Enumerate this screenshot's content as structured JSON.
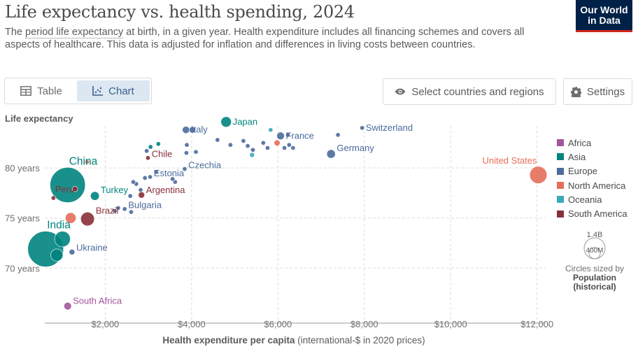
{
  "header": {
    "title": "Life expectancy vs. health spending, 2024",
    "subtitle_pre": "The ",
    "subtitle_link": "period life expectancy",
    "subtitle_post": " at birth, in a given year. Health expenditure includes all financing schemes and covers all aspects of healthcare. This data is adjusted for inflation and differences in living costs between countries.",
    "logo_line1": "Our World",
    "logo_line2": "in Data"
  },
  "toolbar": {
    "table_label": "Table",
    "chart_label": "Chart",
    "select_label": "Select countries and regions",
    "settings_label": "Settings"
  },
  "legend": {
    "items": [
      {
        "label": "Africa",
        "color": "#a2559c"
      },
      {
        "label": "Asia",
        "color": "#00847e"
      },
      {
        "label": "Europe",
        "color": "#4c6a9c"
      },
      {
        "label": "North America",
        "color": "#e56e5a"
      },
      {
        "label": "Oceania",
        "color": "#38aaba"
      },
      {
        "label": "South America",
        "color": "#883039"
      }
    ]
  },
  "size_legend": {
    "big": "1.4B",
    "small": "400M",
    "note": "Circles sized by",
    "variable_line1": "Population",
    "variable_line2": "(historical)"
  },
  "chart_data": {
    "type": "scatter",
    "title": "Life expectancy vs. health spending, 2024",
    "ylabel": "Life expectancy",
    "xlabel_bold": "Health expenditure per capita",
    "xlabel_rest": " (international-$ in 2020 prices)",
    "x_ticks": [
      {
        "value": 2000,
        "label": "$2,000"
      },
      {
        "value": 4000,
        "label": "$4,000"
      },
      {
        "value": 6000,
        "label": "$6,000"
      },
      {
        "value": 8000,
        "label": "$8,000"
      },
      {
        "value": 10000,
        "label": "$10,000"
      },
      {
        "value": 12000,
        "label": "$12,000"
      }
    ],
    "y_ticks": [
      {
        "value": 70,
        "label": "70 years"
      },
      {
        "value": 75,
        "label": "75 years"
      },
      {
        "value": 80,
        "label": "80 years"
      }
    ],
    "xlim": [
      600,
      12200
    ],
    "ylim": [
      64.5,
      84.2
    ],
    "grid": true,
    "legend_position": "right",
    "points": [
      {
        "label": "United States",
        "x": 12030,
        "y": 79.3,
        "pop": 340,
        "region": "North America"
      },
      {
        "label": "Switzerland",
        "x": 7950,
        "y": 84.0,
        "pop": 9,
        "region": "Europe"
      },
      {
        "label": "Germany",
        "x": 7230,
        "y": 81.4,
        "pop": 84,
        "region": "Europe"
      },
      {
        "label": "France",
        "x": 6060,
        "y": 83.2,
        "pop": 66,
        "region": "Europe"
      },
      {
        "label": "Japan",
        "x": 4800,
        "y": 84.6,
        "pop": 124,
        "region": "Asia"
      },
      {
        "label": "Italy",
        "x": 3870,
        "y": 83.8,
        "pop": 59,
        "region": "Europe"
      },
      {
        "label": "Czechia",
        "x": 3840,
        "y": 79.9,
        "pop": 11,
        "region": "Europe"
      },
      {
        "label": "Estonia",
        "x": 3040,
        "y": 79.1,
        "pop": 1.3,
        "region": "Europe"
      },
      {
        "label": "Chile",
        "x": 2990,
        "y": 81.0,
        "pop": 20,
        "region": "South America"
      },
      {
        "label": "Argentina",
        "x": 2840,
        "y": 77.3,
        "pop": 46,
        "region": "South America"
      },
      {
        "label": "Bulgaria",
        "x": 2450,
        "y": 75.9,
        "pop": 6.4,
        "region": "Europe"
      },
      {
        "label": "Brazil",
        "x": 1590,
        "y": 74.9,
        "pop": 212,
        "region": "South America"
      },
      {
        "label": "Turkey",
        "x": 1760,
        "y": 77.2,
        "pop": 87,
        "region": "Asia"
      },
      {
        "label": "Peru",
        "x": 1300,
        "y": 77.9,
        "pop": 34,
        "region": "South America"
      },
      {
        "label": "China",
        "x": 1130,
        "y": 78.3,
        "pop": 1410,
        "region": "Asia"
      },
      {
        "label": "India",
        "x": 620,
        "y": 71.9,
        "pop": 1450,
        "region": "Asia"
      },
      {
        "label": "Ukraine",
        "x": 1230,
        "y": 71.6,
        "pop": 37,
        "region": "Europe"
      },
      {
        "label": "South Africa",
        "x": 1130,
        "y": 66.2,
        "pop": 64,
        "region": "Africa"
      },
      {
        "label": "",
        "x": 1010,
        "y": 72.9,
        "pop": 280,
        "region": "Asia"
      },
      {
        "label": "",
        "x": 1200,
        "y": 75.0,
        "pop": 130,
        "region": "North America"
      },
      {
        "label": "",
        "x": 880,
        "y": 71.3,
        "pop": 170,
        "region": "Asia"
      },
      {
        "label": "",
        "x": 800,
        "y": 77.0,
        "pop": 12,
        "region": "South America"
      },
      {
        "label": "",
        "x": 1580,
        "y": 80.6,
        "pop": 2,
        "region": "North America"
      },
      {
        "label": "",
        "x": 5830,
        "y": 83.8,
        "pop": 5,
        "region": "Oceania"
      },
      {
        "label": "",
        "x": 5980,
        "y": 82.5,
        "pop": 41,
        "region": "North America"
      },
      {
        "label": "",
        "x": 5400,
        "y": 81.3,
        "pop": 27,
        "region": "Oceania"
      },
      {
        "label": "",
        "x": 4020,
        "y": 83.8,
        "pop": 48,
        "region": "Europe"
      },
      {
        "label": "",
        "x": 3230,
        "y": 82.4,
        "pop": 10,
        "region": "Asia"
      },
      {
        "label": "",
        "x": 3880,
        "y": 81.5,
        "pop": 10,
        "region": "Europe"
      },
      {
        "label": "",
        "x": 3890,
        "y": 82.3,
        "pop": 10,
        "region": "Europe"
      },
      {
        "label": "",
        "x": 4100,
        "y": 81.6,
        "pop": 10,
        "region": "Europe"
      },
      {
        "label": "",
        "x": 5420,
        "y": 81.8,
        "pop": 10,
        "region": "Europe"
      },
      {
        "label": "",
        "x": 5200,
        "y": 82.7,
        "pop": 9,
        "region": "Europe"
      },
      {
        "label": "",
        "x": 5300,
        "y": 82.2,
        "pop": 7,
        "region": "Europe"
      },
      {
        "label": "",
        "x": 4600,
        "y": 82.8,
        "pop": 5,
        "region": "Europe"
      },
      {
        "label": "",
        "x": 4900,
        "y": 82.3,
        "pop": 4,
        "region": "Europe"
      },
      {
        "label": "",
        "x": 5660,
        "y": 82.5,
        "pop": 10,
        "region": "Europe"
      },
      {
        "label": "",
        "x": 5760,
        "y": 82.0,
        "pop": 5,
        "region": "Europe"
      },
      {
        "label": "",
        "x": 6150,
        "y": 82.0,
        "pop": 17,
        "region": "Europe"
      },
      {
        "label": "",
        "x": 6230,
        "y": 83.3,
        "pop": 5,
        "region": "Europe"
      },
      {
        "label": "",
        "x": 6260,
        "y": 82.3,
        "pop": 9,
        "region": "Europe"
      },
      {
        "label": "",
        "x": 6350,
        "y": 82.0,
        "pop": 5,
        "region": "Europe"
      },
      {
        "label": "",
        "x": 7390,
        "y": 83.3,
        "pop": 5,
        "region": "Europe"
      },
      {
        "label": "",
        "x": 3620,
        "y": 78.6,
        "pop": 10,
        "region": "Europe"
      },
      {
        "label": "",
        "x": 3560,
        "y": 78.9,
        "pop": 5,
        "region": "Europe"
      },
      {
        "label": "",
        "x": 3180,
        "y": 79.6,
        "pop": 4,
        "region": "Europe"
      },
      {
        "label": "",
        "x": 2820,
        "y": 77.8,
        "pop": 10,
        "region": "Europe"
      },
      {
        "label": "",
        "x": 2720,
        "y": 78.4,
        "pop": 9,
        "region": "Europe"
      },
      {
        "label": "",
        "x": 2650,
        "y": 78.6,
        "pop": 5,
        "region": "Europe"
      },
      {
        "label": "",
        "x": 2580,
        "y": 77.2,
        "pop": 3,
        "region": "Europe"
      },
      {
        "label": "",
        "x": 2920,
        "y": 79.0,
        "pop": 2,
        "region": "Europe"
      },
      {
        "label": "",
        "x": 2600,
        "y": 75.6,
        "pop": 19,
        "region": "Europe"
      },
      {
        "label": "",
        "x": 2300,
        "y": 76.0,
        "pop": 10,
        "region": "Europe"
      },
      {
        "label": "",
        "x": 2220,
        "y": 75.7,
        "pop": 3,
        "region": "Europe"
      },
      {
        "label": "",
        "x": 3050,
        "y": 82.1,
        "pop": 2,
        "region": "Asia"
      },
      {
        "label": "",
        "x": 2960,
        "y": 81.7,
        "pop": 3,
        "region": "Europe"
      }
    ]
  }
}
